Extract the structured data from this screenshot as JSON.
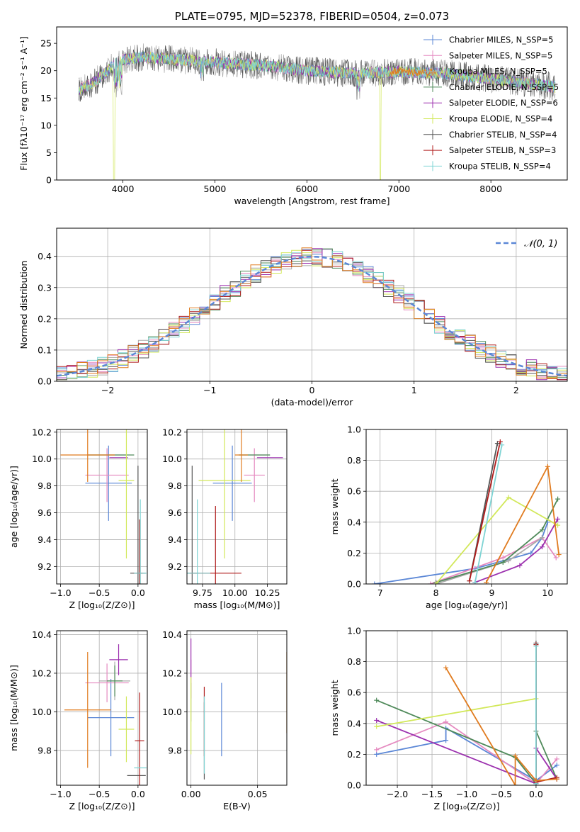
{
  "colors": {
    "Chabrier MILES": "#5b87d6",
    "Salpeter MILES": "#e58ac0",
    "Kroupa MILES": "#aaaaaa",
    "Chabrier ELODIE": "#4f8a5a",
    "Salpeter ELODIE": "#9b2fae",
    "Kroupa ELODIE": "#d2e85a",
    "Chabrier STELIB": "#555555",
    "Salpeter STELIB": "#b01c1c",
    "Kroupa STELIB": "#7fd4d4",
    "orange": "#e07b1f",
    "normal": "#5b87d6"
  },
  "chart_data": [
    {
      "type": "line",
      "title": "PLATE=0795, MJD=52378, FIBERID=0504, z=0.073",
      "xlabel": "wavelength [Angstrom, rest frame]",
      "ylabel": "Flux [fλ10⁻¹⁷ erg cm⁻² s⁻¹ A⁻¹]",
      "xlim": [
        3280,
        8830
      ],
      "ylim": [
        0,
        28
      ],
      "xticks": [
        "4000",
        "5000",
        "6000",
        "7000",
        "8000"
      ],
      "yticks": [
        "0",
        "5",
        "10",
        "15",
        "20",
        "25"
      ],
      "grid": false,
      "legend_position": "top-right",
      "legend": [
        "Chabrier MILES, N_SSP=5",
        "Salpeter MILES, N_SSP=5",
        "Kroupa MILES, N_SSP=5",
        "Chabrier ELODIE, N_SSP=5",
        "Salpeter ELODIE, N_SSP=6",
        "Kroupa ELODIE, N_SSP=4",
        "Chabrier STELIB, N_SSP=4",
        "Salpeter STELIB, N_SSP=3",
        "Kroupa STELIB, N_SSP=4"
      ],
      "continuum": [
        [
          3520,
          16.5
        ],
        [
          3700,
          18.0
        ],
        [
          3900,
          21.0
        ],
        [
          4000,
          22.0
        ],
        [
          4200,
          22.5
        ],
        [
          4600,
          22.0
        ],
        [
          5000,
          21.5
        ],
        [
          5500,
          21.0
        ],
        [
          6000,
          20.0
        ],
        [
          6500,
          19.5
        ],
        [
          7000,
          19.8
        ],
        [
          7500,
          19.5
        ],
        [
          8000,
          18.5
        ],
        [
          8500,
          17.5
        ],
        [
          8700,
          17.0
        ]
      ]
    },
    {
      "type": "histogram",
      "xlabel": "(data-model)/error",
      "ylabel": "Normed distribution",
      "xlim": [
        -2.5,
        2.5
      ],
      "ylim": [
        0,
        0.49
      ],
      "xticks": [
        "−2",
        "−1",
        "0",
        "1",
        "2"
      ],
      "yticks": [
        "0.0",
        "0.1",
        "0.2",
        "0.3",
        "0.4"
      ],
      "grid": true,
      "legend_position": "top-right",
      "legend": [
        "𝒩(0, 1)"
      ],
      "bin_width": 0.1
    },
    {
      "type": "scatter",
      "xlabel": "Z [log₁₀(Z/Z⊙)]",
      "ylabel": "age  [log₁₀(age/yr)]",
      "xlim": [
        -1.05,
        0.12
      ],
      "ylim": [
        9.07,
        10.22
      ],
      "xticks": [
        "−1.0",
        "−0.5",
        "0.0"
      ],
      "yticks": [
        "9.2",
        "9.4",
        "9.6",
        "9.8",
        "10.0",
        "10.2"
      ],
      "points": [
        {
          "c": "Chabrier MILES",
          "x": -0.38,
          "y": 9.82,
          "xe": 0.3,
          "ye": 0.28
        },
        {
          "c": "Salpeter MILES",
          "x": -0.4,
          "y": 9.88,
          "xe": 0.28,
          "ye": 0.2
        },
        {
          "c": "Kroupa MILES",
          "x": -0.4,
          "y": 10.03,
          "xe": 0.25,
          "ye": 0.0
        },
        {
          "c": "Chabrier ELODIE",
          "x": -0.35,
          "y": 10.03,
          "xe": 0.3,
          "ye": 0.0
        },
        {
          "c": "Salpeter ELODIE",
          "x": -0.25,
          "y": 10.01,
          "xe": 0.12,
          "ye": 0.0
        },
        {
          "c": "Kroupa ELODIE",
          "x": -0.15,
          "y": 9.84,
          "xe": 0.1,
          "ye": 0.58
        },
        {
          "c": "Chabrier STELIB",
          "x": 0.0,
          "y": 9.15,
          "xe": 0.1,
          "ye": 0.8
        },
        {
          "c": "Salpeter STELIB",
          "x": 0.02,
          "y": 9.15,
          "xe": 0.04,
          "ye": 0.4
        },
        {
          "c": "Kroupa STELIB",
          "x": 0.03,
          "y": 9.15,
          "xe": 0.08,
          "ye": 0.55
        },
        {
          "c": "orange",
          "x": -0.65,
          "y": 10.03,
          "xe": 0.35,
          "ye": 0.2
        }
      ]
    },
    {
      "type": "scatter",
      "xlabel": "mass [log₁₀(M/M⊙)]",
      "ylabel": "",
      "xlim": [
        9.63,
        10.4
      ],
      "ylim": [
        9.07,
        10.22
      ],
      "xticks": [
        "9.75",
        "10.00",
        "10.25"
      ],
      "yticks": [
        "9.2",
        "9.4",
        "9.6",
        "9.8",
        "10.0",
        "10.2"
      ],
      "points": [
        {
          "c": "Chabrier MILES",
          "x": 9.98,
          "y": 9.82,
          "xe": 0.15,
          "ye": 0.28
        },
        {
          "c": "Salpeter MILES",
          "x": 10.15,
          "y": 9.88,
          "xe": 0.08,
          "ye": 0.2
        },
        {
          "c": "Kroupa MILES",
          "x": 10.15,
          "y": 10.03,
          "xe": 0.12,
          "ye": 0.0
        },
        {
          "c": "Chabrier ELODIE",
          "x": 10.15,
          "y": 10.03,
          "xe": 0.12,
          "ye": 0.0
        },
        {
          "c": "Salpeter ELODIE",
          "x": 10.27,
          "y": 10.01,
          "xe": 0.1,
          "ye": 0.0
        },
        {
          "c": "Kroupa ELODIE",
          "x": 9.92,
          "y": 9.84,
          "xe": 0.2,
          "ye": 0.58
        },
        {
          "c": "Chabrier STELIB",
          "x": 9.67,
          "y": 9.15,
          "xe": 0.05,
          "ye": 0.8
        },
        {
          "c": "Salpeter STELIB",
          "x": 9.85,
          "y": 9.15,
          "xe": 0.2,
          "ye": 0.5
        },
        {
          "c": "Kroupa STELIB",
          "x": 9.71,
          "y": 9.15,
          "xe": 0.1,
          "ye": 0.55
        },
        {
          "c": "orange",
          "x": 10.05,
          "y": 10.03,
          "xe": 0.05,
          "ye": 0.2
        }
      ]
    },
    {
      "type": "line",
      "xlabel": "age  [log₁₀(age/yr)]",
      "ylabel": "mass weight",
      "xlim": [
        6.75,
        10.35
      ],
      "ylim": [
        0,
        1
      ],
      "xticks": [
        "7",
        "8",
        "9",
        "10"
      ],
      "yticks": [
        "0.0",
        "0.2",
        "0.4",
        "0.6",
        "0.8",
        "1.0"
      ],
      "grid": true,
      "series": [
        {
          "c": "Chabrier MILES",
          "pts": [
            [
              6.9,
              0.0
            ],
            [
              8.7,
              0.1
            ],
            [
              9.7,
              0.2
            ],
            [
              9.9,
              0.3
            ],
            [
              10.0,
              0.4
            ]
          ]
        },
        {
          "c": "Salpeter MILES",
          "pts": [
            [
              7.9,
              0.0
            ],
            [
              9.2,
              0.17
            ],
            [
              9.9,
              0.3
            ],
            [
              10.15,
              0.17
            ]
          ]
        },
        {
          "c": "Kroupa MILES",
          "pts": [
            [
              8.0,
              0.0
            ],
            [
              9.3,
              0.15
            ],
            [
              9.9,
              0.3
            ]
          ]
        },
        {
          "c": "Chabrier ELODIE",
          "pts": [
            [
              8.0,
              0.01
            ],
            [
              9.2,
              0.14
            ],
            [
              9.9,
              0.35
            ],
            [
              10.18,
              0.55
            ]
          ]
        },
        {
          "c": "Salpeter ELODIE",
          "pts": [
            [
              8.7,
              0.01
            ],
            [
              9.5,
              0.12
            ],
            [
              9.9,
              0.24
            ],
            [
              10.18,
              0.42
            ]
          ]
        },
        {
          "c": "Kroupa ELODIE",
          "pts": [
            [
              8.0,
              0.0
            ],
            [
              9.3,
              0.56
            ],
            [
              10.18,
              0.38
            ]
          ]
        },
        {
          "c": "Chabrier STELIB",
          "pts": [
            [
              8.6,
              0.02
            ],
            [
              9.1,
              0.91
            ]
          ]
        },
        {
          "c": "Salpeter STELIB",
          "pts": [
            [
              8.6,
              0.02
            ],
            [
              9.15,
              0.92
            ]
          ]
        },
        {
          "c": "Kroupa STELIB",
          "pts": [
            [
              8.7,
              0.01
            ],
            [
              9.18,
              0.9
            ]
          ]
        },
        {
          "c": "orange",
          "pts": [
            [
              8.9,
              0.01
            ],
            [
              10.0,
              0.76
            ],
            [
              10.2,
              0.19
            ]
          ]
        }
      ]
    },
    {
      "type": "scatter",
      "xlabel": "Z [log₁₀(Z/Z⊙)]",
      "ylabel": "mass [log₁₀(M/M⊙)]",
      "xlim": [
        -1.05,
        0.12
      ],
      "ylim": [
        9.62,
        10.42
      ],
      "xticks": [
        "−1.0",
        "−0.5",
        "0.0"
      ],
      "yticks": [
        "9.8",
        "10.0",
        "10.2",
        "10.4"
      ],
      "points": [
        {
          "c": "Chabrier MILES",
          "x": -0.35,
          "y": 9.97,
          "xe": 0.3,
          "ye": 0.2
        },
        {
          "c": "Salpeter MILES",
          "x": -0.4,
          "y": 10.15,
          "xe": 0.28,
          "ye": 0.1
        },
        {
          "c": "Kroupa MILES",
          "x": -0.3,
          "y": 10.16,
          "xe": 0.2,
          "ye": 0.1
        },
        {
          "c": "Chabrier ELODIE",
          "x": -0.3,
          "y": 10.16,
          "xe": 0.1,
          "ye": 0.08
        },
        {
          "c": "Salpeter ELODIE",
          "x": -0.25,
          "y": 10.27,
          "xe": 0.12,
          "ye": 0.08
        },
        {
          "c": "Kroupa ELODIE",
          "x": -0.15,
          "y": 9.91,
          "xe": 0.1,
          "ye": 0.17
        },
        {
          "c": "Chabrier STELIB",
          "x": -0.02,
          "y": 9.67,
          "xe": 0.12,
          "ye": 0.0
        },
        {
          "c": "Salpeter STELIB",
          "x": 0.02,
          "y": 9.85,
          "xe": 0.06,
          "ye": 0.25
        },
        {
          "c": "Kroupa STELIB",
          "x": 0.03,
          "y": 9.71,
          "xe": 0.08,
          "ye": 0.0
        },
        {
          "c": "orange",
          "x": -0.65,
          "y": 10.01,
          "xe": 0.3,
          "ye": 0.3
        }
      ]
    },
    {
      "type": "scatter",
      "xlabel": "E(B-V)",
      "ylabel": "",
      "xlim": [
        -0.003,
        0.072
      ],
      "ylim": [
        9.62,
        10.42
      ],
      "xticks": [
        "0.00",
        "0.05"
      ],
      "yticks": [
        "9.8",
        "10.0",
        "10.2",
        "10.4"
      ],
      "points": [
        {
          "c": "Chabrier MILES",
          "x": 0.023,
          "y": 9.96,
          "xe": 0,
          "ye": 0.19
        },
        {
          "c": "Salpeter MILES",
          "x": 0.0,
          "y": 10.17,
          "xe": 0,
          "ye": 0.1
        },
        {
          "c": "Kroupa MILES",
          "x": 0.0,
          "y": 10.05,
          "xe": 0,
          "ye": 0.1
        },
        {
          "c": "Salpeter ELODIE",
          "x": 0.0,
          "y": 10.28,
          "xe": 0,
          "ye": 0.1
        },
        {
          "c": "Kroupa ELODIE",
          "x": 0.0,
          "y": 9.98,
          "xe": 0,
          "ye": 0.2
        },
        {
          "c": "Chabrier STELIB",
          "x": 0.01,
          "y": 9.85,
          "xe": 0,
          "ye": 0.2
        },
        {
          "c": "Salpeter STELIB",
          "x": 0.01,
          "y": 9.95,
          "xe": 0,
          "ye": 0.18
        },
        {
          "c": "Kroupa STELIB",
          "x": 0.01,
          "y": 9.88,
          "xe": 0,
          "ye": 0.2
        },
        {
          "c": "orange",
          "x": 0.072,
          "y": 10.1,
          "xe": 0,
          "ye": 0.21
        }
      ]
    },
    {
      "type": "line",
      "xlabel": "Z [log₁₀(Z/Z⊙)]",
      "ylabel": "mass weight",
      "xlim": [
        -2.45,
        0.45
      ],
      "ylim": [
        0,
        1
      ],
      "xticks": [
        "−2.0",
        "−1.5",
        "−1.0",
        "−0.5",
        "0.0"
      ],
      "yticks": [
        "0.0",
        "0.2",
        "0.4",
        "0.6",
        "0.8",
        "1.0"
      ],
      "grid": true,
      "series": [
        {
          "c": "Chabrier MILES",
          "pts": [
            [
              -2.3,
              0.2
            ],
            [
              -1.3,
              0.29
            ],
            [
              -1.3,
              0.37
            ],
            [
              0.0,
              0.03
            ],
            [
              0.3,
              0.13
            ]
          ]
        },
        {
          "c": "Salpeter MILES",
          "pts": [
            [
              -2.3,
              0.23
            ],
            [
              -1.3,
              0.41
            ],
            [
              0.0,
              0.01
            ],
            [
              0.3,
              0.17
            ]
          ]
        },
        {
          "c": "Chabrier ELODIE",
          "pts": [
            [
              -2.3,
              0.55
            ],
            [
              -0.3,
              0.18
            ],
            [
              0.0,
              0.01
            ],
            [
              0.0,
              0.35
            ],
            [
              0.3,
              0.04
            ]
          ]
        },
        {
          "c": "Salpeter ELODIE",
          "pts": [
            [
              -2.3,
              0.42
            ],
            [
              0.0,
              0.01
            ],
            [
              0.0,
              0.24
            ],
            [
              0.3,
              0.04
            ]
          ]
        },
        {
          "c": "Kroupa ELODIE",
          "pts": [
            [
              -2.3,
              0.38
            ],
            [
              0.0,
              0.56
            ]
          ]
        },
        {
          "c": "Chabrier STELIB",
          "pts": [
            [
              0.0,
              0.92
            ],
            [
              0.0,
              0.01
            ]
          ]
        },
        {
          "c": "Salpeter STELIB",
          "pts": [
            [
              0.0,
              0.91
            ],
            [
              0.0,
              0.02
            ],
            [
              0.3,
              0.05
            ]
          ]
        },
        {
          "c": "Kroupa STELIB",
          "pts": [
            [
              0.0,
              0.9
            ],
            [
              0.0,
              0.01
            ]
          ]
        },
        {
          "c": "orange",
          "pts": [
            [
              -1.3,
              0.76
            ],
            [
              -0.3,
              0.0
            ],
            [
              -0.3,
              0.19
            ],
            [
              0.0,
              0.03
            ],
            [
              0.3,
              0.04
            ]
          ]
        }
      ]
    }
  ]
}
